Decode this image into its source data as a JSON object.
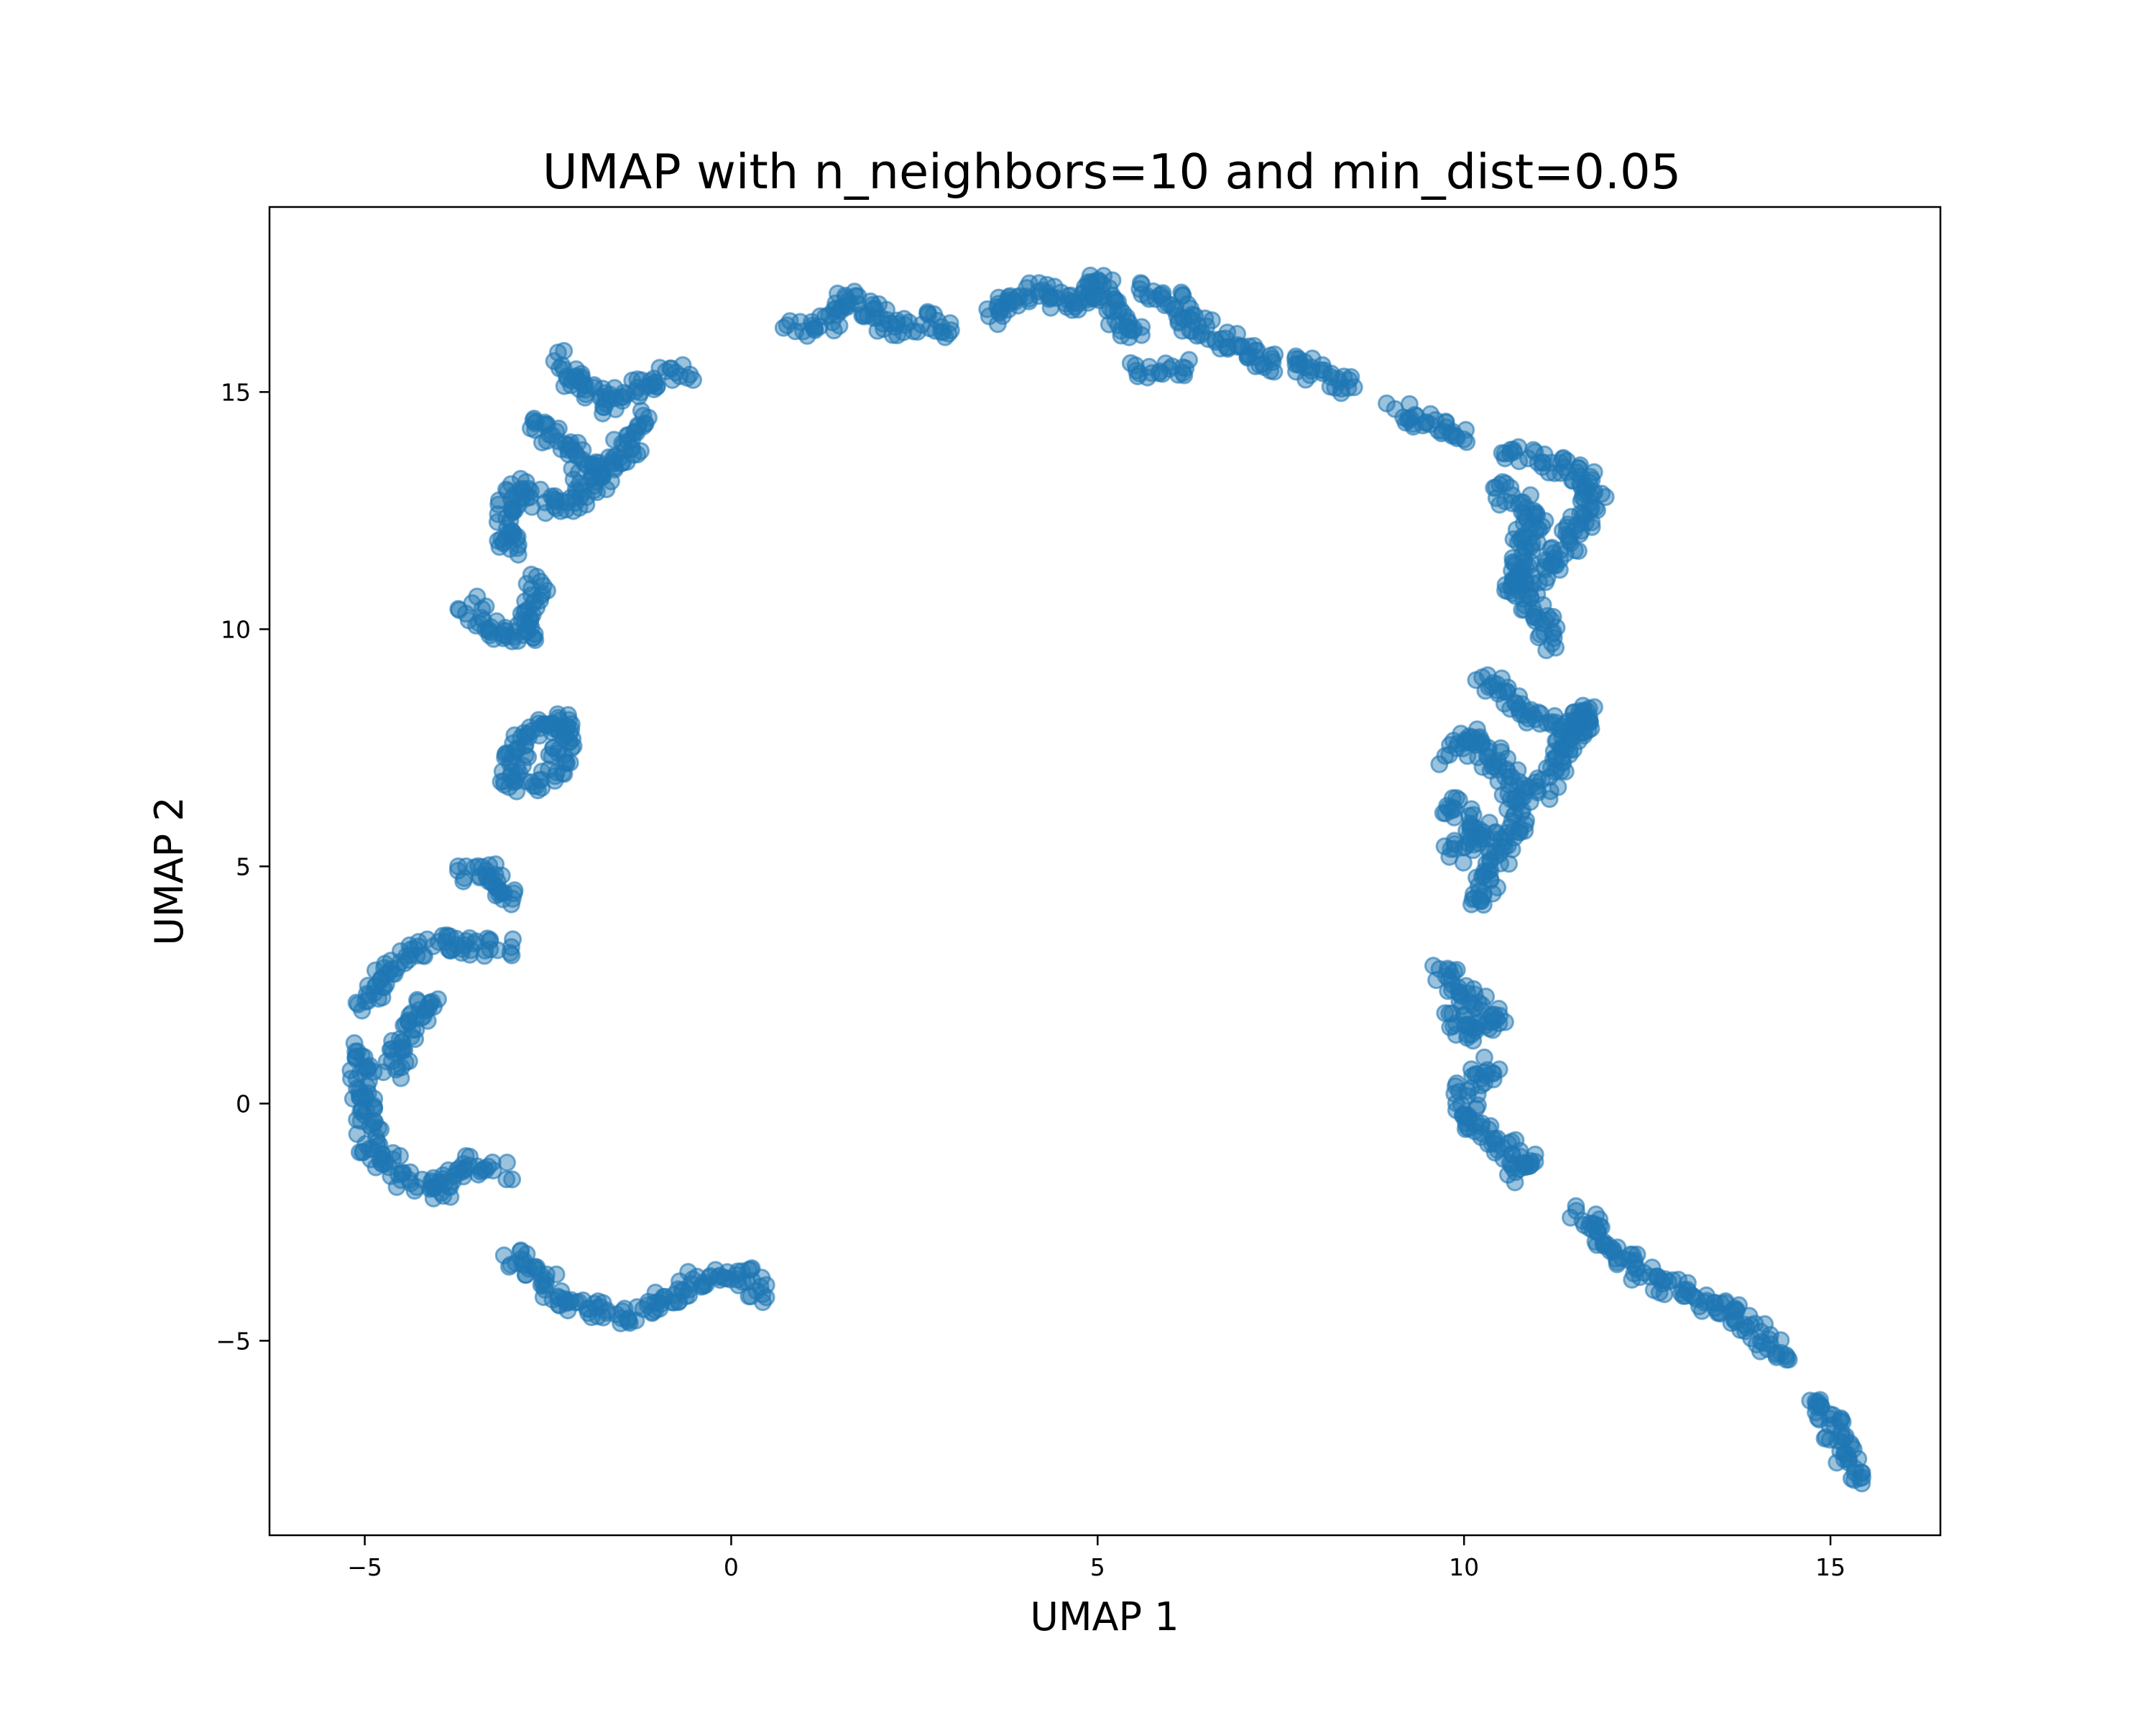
{
  "chart_data": {
    "type": "scatter",
    "title": "UMAP with n_neighbors=10 and min_dist=0.05",
    "xlabel": "UMAP 1",
    "ylabel": "UMAP 2",
    "xlim": [
      -6.3,
      16.5
    ],
    "ylim": [
      -9.1,
      18.9
    ],
    "xticks": [
      -5,
      0,
      5,
      10,
      15
    ],
    "yticks": [
      -5,
      0,
      5,
      10,
      15
    ],
    "xtick_labels": [
      "−5",
      "0",
      "5",
      "10",
      "15"
    ],
    "ytick_labels": [
      "−5",
      "0",
      "5",
      "10",
      "15"
    ],
    "grid": false,
    "legend": "none",
    "point_color": "#1f77b4",
    "point_alpha": 0.45,
    "segments": [
      [
        [
          0.4,
          -4.1
        ],
        [
          0.2,
          -3.6
        ],
        [
          -0.5,
          -3.7
        ],
        [
          -1.0,
          -4.3
        ],
        [
          -1.5,
          -4.5
        ],
        [
          -2.2,
          -4.2
        ],
        [
          -2.6,
          -3.6
        ],
        [
          -3.1,
          -3.2
        ]
      ],
      [
        [
          -3.1,
          -1.4
        ],
        [
          -3.7,
          -1.3
        ],
        [
          -4.0,
          -1.9
        ],
        [
          -4.5,
          -1.5
        ],
        [
          -4.9,
          -0.9
        ],
        [
          -5.0,
          -0.3
        ],
        [
          -5.0,
          0.5
        ],
        [
          -5.1,
          1.1
        ]
      ],
      [
        [
          -4.6,
          0.7
        ],
        [
          -4.4,
          1.5
        ],
        [
          -4.2,
          2.0
        ],
        [
          -4.0,
          2.2
        ]
      ],
      [
        [
          -5.0,
          2.1
        ],
        [
          -4.7,
          2.8
        ],
        [
          -4.3,
          3.3
        ],
        [
          -3.9,
          3.4
        ],
        [
          -3.4,
          3.3
        ],
        [
          -3.0,
          3.3
        ]
      ],
      [
        [
          -3.7,
          4.8
        ],
        [
          -3.3,
          4.9
        ],
        [
          -3.1,
          4.5
        ],
        [
          -3.0,
          4.2
        ]
      ],
      [
        [
          -3.0,
          6.6
        ],
        [
          -3.0,
          7.3
        ],
        [
          -2.6,
          7.9
        ],
        [
          -2.3,
          8.2
        ],
        [
          -2.3,
          7.2
        ],
        [
          -2.7,
          6.7
        ]
      ],
      [
        [
          -3.6,
          10.5
        ],
        [
          -3.3,
          10.0
        ],
        [
          -2.8,
          9.8
        ],
        [
          -2.7,
          10.5
        ],
        [
          -2.6,
          11.0
        ]
      ],
      [
        [
          -3.0,
          11.6
        ],
        [
          -3.1,
          12.3
        ],
        [
          -2.9,
          13.0
        ],
        [
          -2.5,
          12.6
        ],
        [
          -2.1,
          12.7
        ],
        [
          -1.9,
          13.3
        ],
        [
          -2.2,
          13.8
        ],
        [
          -2.7,
          14.4
        ]
      ],
      [
        [
          -2.3,
          15.7
        ],
        [
          -2.1,
          15.2
        ],
        [
          -1.7,
          14.7
        ],
        [
          -1.5,
          15.0
        ],
        [
          -1.1,
          15.2
        ],
        [
          -0.8,
          15.4
        ],
        [
          -0.6,
          15.3
        ]
      ],
      [
        [
          -1.9,
          13.0
        ],
        [
          -1.6,
          13.5
        ],
        [
          -1.3,
          14.1
        ],
        [
          -1.2,
          14.5
        ]
      ],
      [
        [
          0.8,
          16.3
        ],
        [
          1.3,
          16.5
        ],
        [
          1.6,
          17.0
        ],
        [
          1.9,
          16.7
        ],
        [
          2.2,
          16.4
        ],
        [
          2.6,
          16.5
        ],
        [
          3.0,
          16.3
        ]
      ],
      [
        [
          3.5,
          16.5
        ],
        [
          3.8,
          17.0
        ],
        [
          4.2,
          17.2
        ],
        [
          4.6,
          16.8
        ],
        [
          5.0,
          17.4
        ],
        [
          5.3,
          16.5
        ],
        [
          5.6,
          16.2
        ]
      ],
      [
        [
          5.5,
          15.5
        ],
        [
          5.9,
          15.5
        ],
        [
          6.2,
          15.5
        ]
      ],
      [
        [
          5.6,
          17.2
        ],
        [
          6.0,
          17.0
        ],
        [
          6.3,
          16.4
        ],
        [
          6.8,
          16.0
        ],
        [
          7.3,
          15.6
        ],
        [
          7.9,
          15.5
        ],
        [
          8.5,
          15.1
        ]
      ],
      [
        [
          9.1,
          14.6
        ],
        [
          9.5,
          14.4
        ],
        [
          10.0,
          14.0
        ]
      ],
      [
        [
          10.6,
          13.8
        ],
        [
          11.1,
          13.5
        ],
        [
          11.6,
          13.3
        ],
        [
          11.8,
          12.9
        ],
        [
          11.5,
          12.0
        ],
        [
          11.1,
          11.3
        ],
        [
          10.6,
          10.8
        ]
      ],
      [
        [
          10.4,
          12.9
        ],
        [
          10.8,
          12.7
        ],
        [
          11.0,
          12.4
        ],
        [
          10.8,
          11.7
        ],
        [
          10.7,
          11.0
        ],
        [
          11.0,
          10.3
        ],
        [
          11.2,
          9.7
        ]
      ],
      [
        [
          10.3,
          9.0
        ],
        [
          10.6,
          8.5
        ],
        [
          11.0,
          8.2
        ],
        [
          11.5,
          7.8
        ],
        [
          11.7,
          8.4
        ],
        [
          11.3,
          7.2
        ],
        [
          11.0,
          6.6
        ]
      ],
      [
        [
          9.8,
          7.3
        ],
        [
          10.1,
          7.8
        ],
        [
          10.5,
          7.1
        ],
        [
          10.8,
          6.3
        ],
        [
          10.6,
          5.6
        ],
        [
          10.4,
          4.9
        ],
        [
          10.1,
          4.2
        ]
      ],
      [
        [
          9.8,
          6.4
        ],
        [
          10.0,
          6.0
        ],
        [
          10.3,
          5.8
        ],
        [
          9.8,
          5.2
        ]
      ],
      [
        [
          9.7,
          2.9
        ],
        [
          9.9,
          2.4
        ],
        [
          10.2,
          2.0
        ],
        [
          10.5,
          1.8
        ],
        [
          10.1,
          1.5
        ],
        [
          9.8,
          1.9
        ]
      ],
      [
        [
          10.4,
          0.8
        ],
        [
          10.0,
          0.2
        ],
        [
          10.1,
          -0.4
        ],
        [
          10.6,
          -0.9
        ],
        [
          10.9,
          -1.3
        ],
        [
          10.6,
          -1.5
        ]
      ],
      [
        [
          11.6,
          -2.3
        ],
        [
          11.9,
          -2.9
        ],
        [
          12.4,
          -3.5
        ],
        [
          12.9,
          -3.9
        ],
        [
          13.4,
          -4.2
        ],
        [
          13.8,
          -4.6
        ],
        [
          14.1,
          -5.0
        ],
        [
          14.4,
          -5.4
        ]
      ],
      [
        [
          14.8,
          -6.2
        ],
        [
          15.0,
          -6.8
        ],
        [
          15.2,
          -7.3
        ],
        [
          15.4,
          -7.9
        ]
      ]
    ]
  }
}
